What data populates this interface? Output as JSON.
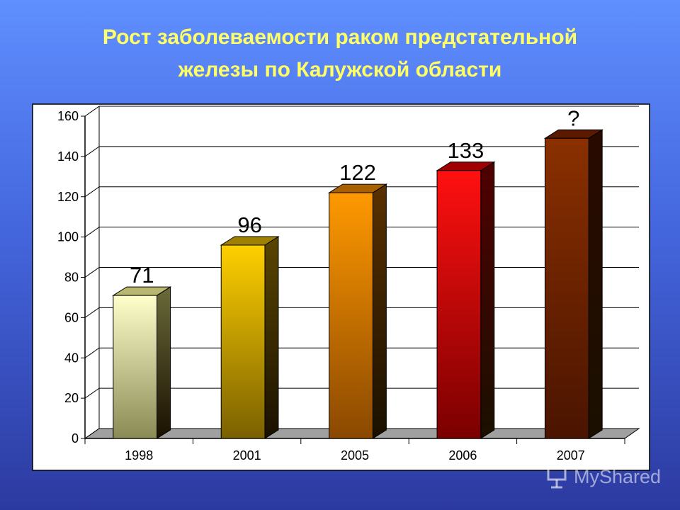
{
  "title": "Рост заболеваемости раком предстательной\nжелезы по Калужской области",
  "watermark": {
    "text": "MyShared",
    "icon": "presentation-icon"
  },
  "chart_data": {
    "type": "bar",
    "title": "Рост заболеваемости раком предстательной железы по Калужской области",
    "categories": [
      "1998",
      "2001",
      "2005",
      "2006",
      "2007"
    ],
    "values": [
      71,
      96,
      122,
      133,
      149
    ],
    "data_labels": [
      "71",
      "96",
      "122",
      "133",
      "?"
    ],
    "xlabel": "",
    "ylabel": "",
    "ylim": [
      0,
      160
    ],
    "yticks": [
      0,
      20,
      40,
      60,
      80,
      100,
      120,
      140,
      160
    ],
    "grid": true,
    "legend": "none",
    "bar_colors": [
      {
        "top": "#ffffcc",
        "bottom": "#8a8a55",
        "side": "#6a6a3a",
        "cap": "#b8b870"
      },
      {
        "top": "#ffd000",
        "bottom": "#7a6000",
        "side": "#5a4600",
        "cap": "#a08000"
      },
      {
        "top": "#ff9900",
        "bottom": "#8a4800",
        "side": "#5a3000",
        "cap": "#a86000"
      },
      {
        "top": "#ff1010",
        "bottom": "#7a0000",
        "side": "#500000",
        "cap": "#a00000"
      },
      {
        "top": "#8a3000",
        "bottom": "#4a1400",
        "side": "#2a0a00",
        "cap": "#5a1a00"
      }
    ],
    "plot_background": "#ffffff",
    "floor_color": "#a0a0a0"
  }
}
